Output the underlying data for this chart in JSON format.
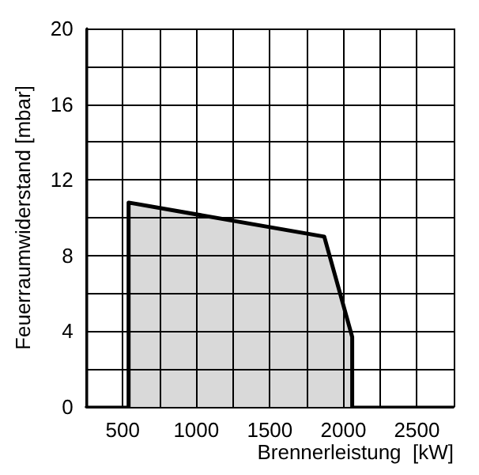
{
  "chart_data": {
    "type": "area",
    "xlabel": "Brennerleistung  [kW]",
    "ylabel": "Feuerraumwiderstand [mbar]",
    "series": [
      {
        "color": "#d9d9d9",
        "x": [
          540,
          540,
          1870,
          2060,
          2060
        ],
        "values": [
          0,
          10.8,
          9.0,
          3.7,
          0
        ]
      }
    ],
    "xlim": [
      250,
      2750
    ],
    "xticks": [
      {
        "value": 250,
        "label": null
      },
      500,
      {
        "value": 750,
        "label": null
      },
      1000,
      {
        "value": 1250,
        "label": null
      },
      1500,
      {
        "value": 1750,
        "label": null
      },
      2000,
      {
        "value": 2250,
        "label": null
      },
      2500,
      {
        "value": 2750,
        "label": null
      }
    ],
    "ylim": [
      0,
      20
    ],
    "yticks": [
      0,
      {
        "value": 2,
        "label": null
      },
      4,
      {
        "value": 6,
        "label": null
      },
      8,
      {
        "value": 10,
        "label": null
      },
      12,
      {
        "value": 14,
        "label": null
      },
      16,
      {
        "value": 18,
        "label": null
      },
      20
    ],
    "grid": true,
    "marker": "none",
    "line_style": "solid"
  }
}
